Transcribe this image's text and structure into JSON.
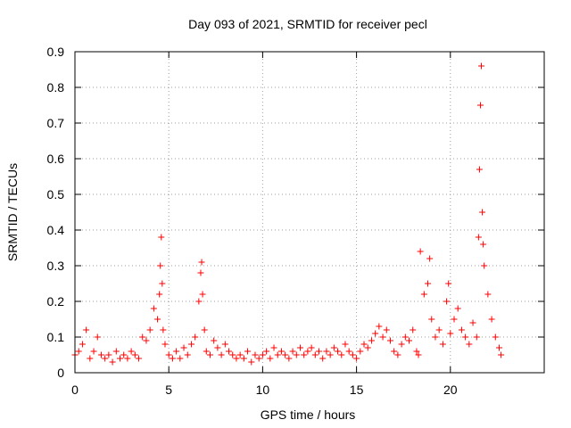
{
  "chart_data": {
    "type": "scatter",
    "title": "Day 093 of 2021, SRMTID for receiver pecl",
    "xlabel": "GPS time / hours",
    "ylabel": "SRMTID / TECUs",
    "xlim": [
      0,
      25
    ],
    "ylim": [
      0,
      0.9
    ],
    "xticks": [
      "0",
      "5",
      "10",
      "15",
      "20"
    ],
    "xtick_values": [
      0,
      5,
      10,
      15,
      20
    ],
    "yticks": [
      "0",
      "0.1",
      "0.2",
      "0.3",
      "0.4",
      "0.5",
      "0.6",
      "0.7",
      "0.8",
      "0.9"
    ],
    "ytick_values": [
      0,
      0.1,
      0.2,
      0.3,
      0.4,
      0.5,
      0.6,
      0.7,
      0.8,
      0.9
    ],
    "grid": true,
    "marker": "+",
    "color": "#ff0000",
    "series": [
      {
        "name": "SRMTID",
        "x": [
          0.0,
          0.2,
          0.4,
          0.6,
          0.8,
          1.0,
          1.2,
          1.4,
          1.6,
          1.8,
          2.0,
          2.2,
          2.4,
          2.6,
          2.8,
          3.0,
          3.2,
          3.4,
          3.6,
          3.8,
          4.0,
          4.2,
          4.4,
          4.5,
          4.55,
          4.6,
          4.65,
          4.7,
          4.8,
          5.0,
          5.2,
          5.4,
          5.6,
          5.8,
          6.0,
          6.2,
          6.4,
          6.6,
          6.7,
          6.75,
          6.8,
          6.9,
          7.0,
          7.2,
          7.4,
          7.6,
          7.8,
          8.0,
          8.2,
          8.4,
          8.6,
          8.8,
          9.0,
          9.2,
          9.4,
          9.6,
          9.8,
          10.0,
          10.2,
          10.4,
          10.6,
          10.8,
          11.0,
          11.2,
          11.4,
          11.6,
          11.8,
          12.0,
          12.2,
          12.4,
          12.6,
          12.8,
          13.0,
          13.2,
          13.4,
          13.6,
          13.8,
          14.0,
          14.2,
          14.4,
          14.6,
          14.8,
          15.0,
          15.2,
          15.4,
          15.6,
          15.8,
          16.0,
          16.2,
          16.4,
          16.6,
          16.8,
          17.0,
          17.2,
          17.4,
          17.6,
          17.8,
          18.0,
          18.2,
          18.3,
          18.4,
          18.6,
          18.8,
          18.9,
          19.0,
          19.2,
          19.4,
          19.6,
          19.8,
          19.9,
          20.0,
          20.2,
          20.4,
          20.6,
          20.8,
          21.0,
          21.2,
          21.4,
          21.5,
          21.55,
          21.6,
          21.65,
          21.7,
          21.75,
          21.8,
          22.0,
          22.2,
          22.4,
          22.6,
          22.7
        ],
        "y": [
          0.05,
          0.06,
          0.08,
          0.12,
          0.04,
          0.06,
          0.1,
          0.05,
          0.04,
          0.05,
          0.03,
          0.06,
          0.04,
          0.05,
          0.04,
          0.06,
          0.05,
          0.04,
          0.1,
          0.09,
          0.12,
          0.18,
          0.15,
          0.22,
          0.3,
          0.38,
          0.25,
          0.12,
          0.08,
          0.05,
          0.04,
          0.06,
          0.04,
          0.07,
          0.05,
          0.08,
          0.1,
          0.2,
          0.28,
          0.31,
          0.22,
          0.12,
          0.06,
          0.05,
          0.09,
          0.07,
          0.05,
          0.08,
          0.06,
          0.05,
          0.04,
          0.05,
          0.04,
          0.06,
          0.03,
          0.05,
          0.04,
          0.05,
          0.06,
          0.04,
          0.07,
          0.05,
          0.06,
          0.05,
          0.04,
          0.06,
          0.05,
          0.07,
          0.05,
          0.06,
          0.07,
          0.05,
          0.06,
          0.04,
          0.06,
          0.05,
          0.07,
          0.06,
          0.05,
          0.08,
          0.06,
          0.05,
          0.04,
          0.06,
          0.08,
          0.07,
          0.09,
          0.11,
          0.13,
          0.1,
          0.12,
          0.09,
          0.06,
          0.05,
          0.08,
          0.1,
          0.09,
          0.12,
          0.06,
          0.05,
          0.34,
          0.22,
          0.25,
          0.32,
          0.15,
          0.1,
          0.12,
          0.08,
          0.2,
          0.25,
          0.11,
          0.15,
          0.18,
          0.12,
          0.1,
          0.08,
          0.14,
          0.1,
          0.38,
          0.57,
          0.75,
          0.86,
          0.45,
          0.36,
          0.3,
          0.22,
          0.15,
          0.1,
          0.07,
          0.05
        ]
      }
    ]
  }
}
